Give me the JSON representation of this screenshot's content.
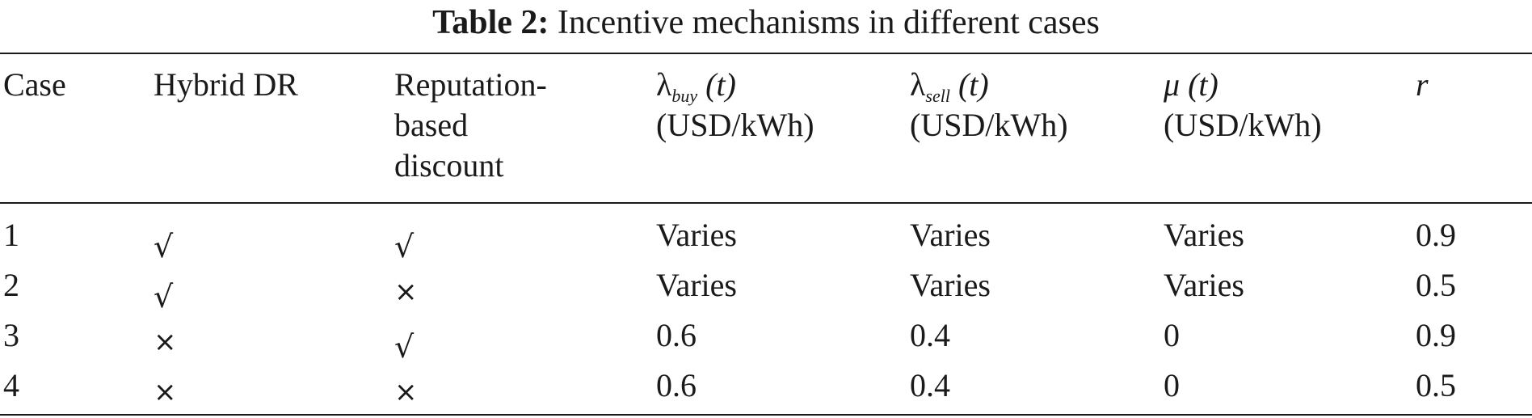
{
  "caption": {
    "label": "Table 2:",
    "text": "Incentive mechanisms in different cases"
  },
  "header": {
    "case": "Case",
    "hybrid_dr": "Hybrid DR",
    "reputation": [
      "Reputation-",
      "based",
      "discount"
    ],
    "lambda_buy": {
      "symbol": "λ",
      "sub": "buy",
      "arg": "(t)",
      "unit": "(USD/kWh)"
    },
    "lambda_sell": {
      "symbol": "λ",
      "sub": "sell",
      "arg": "(t)",
      "unit": "(USD/kWh)"
    },
    "mu": {
      "symbol": "μ",
      "arg": "(t)",
      "unit": "(USD/kWh)"
    },
    "r": "r"
  },
  "rows": [
    {
      "case": "1",
      "hybrid_dr": "√",
      "reputation": "√",
      "lambda_buy": "Varies",
      "lambda_sell": "Varies",
      "mu": "Varies",
      "r": "0.9"
    },
    {
      "case": "2",
      "hybrid_dr": "√",
      "reputation": "×",
      "lambda_buy": "Varies",
      "lambda_sell": "Varies",
      "mu": "Varies",
      "r": "0.5"
    },
    {
      "case": "3",
      "hybrid_dr": "×",
      "reputation": "√",
      "lambda_buy": "0.6",
      "lambda_sell": "0.4",
      "mu": "0",
      "r": "0.9"
    },
    {
      "case": "4",
      "hybrid_dr": "×",
      "reputation": "×",
      "lambda_buy": "0.6",
      "lambda_sell": "0.4",
      "mu": "0",
      "r": "0.5"
    }
  ]
}
